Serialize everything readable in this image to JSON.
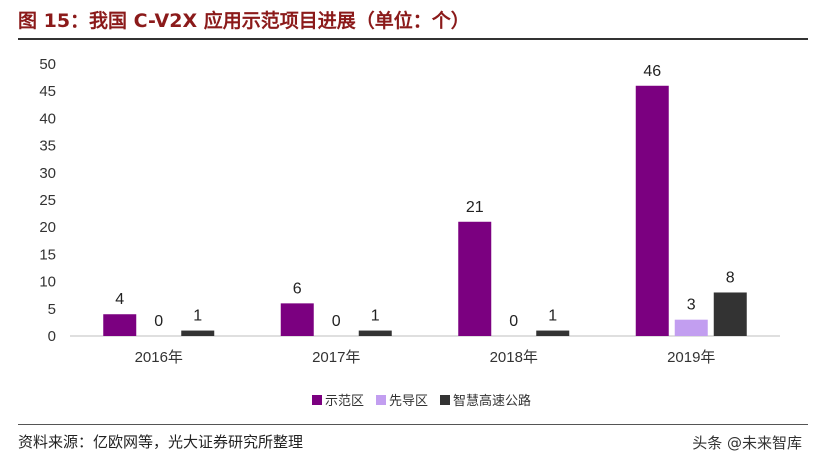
{
  "figure": {
    "title": "图 15：我国 C-V2X 应用示范项目进展（单位：个）",
    "source": "资料来源：亿欧网等，光大证券研究所整理",
    "watermark": "头条 @未来智库"
  },
  "chart_data": {
    "type": "bar",
    "title": "",
    "xlabel": "",
    "ylabel": "",
    "categories": [
      "2016年",
      "2017年",
      "2018年",
      "2019年"
    ],
    "series": [
      {
        "name": "示范区",
        "values": [
          4,
          6,
          21,
          46
        ],
        "color": "#7b0080"
      },
      {
        "name": "先导区",
        "values": [
          0,
          0,
          0,
          3
        ],
        "color": "#c29ef0"
      },
      {
        "name": "智慧高速公路",
        "values": [
          1,
          1,
          1,
          8
        ],
        "color": "#333333"
      }
    ],
    "ylim": [
      0,
      50
    ],
    "yticks": [
      0,
      5,
      10,
      15,
      20,
      25,
      30,
      35,
      40,
      45,
      50
    ],
    "grid": false,
    "legend_position": "bottom"
  }
}
